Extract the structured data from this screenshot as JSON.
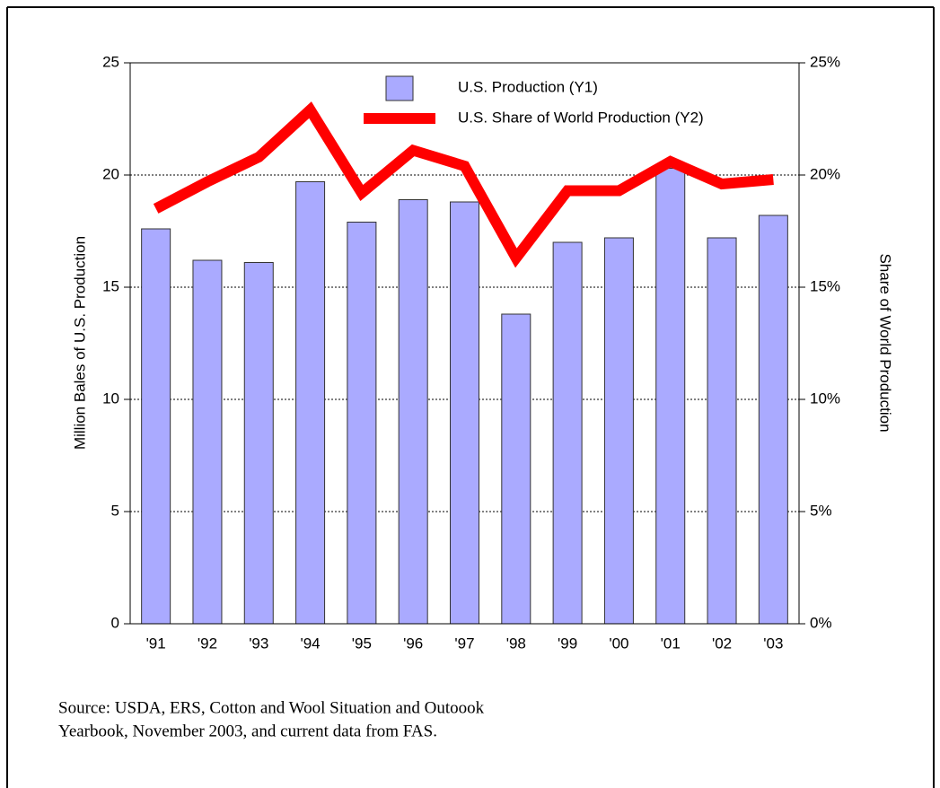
{
  "chart_data": {
    "type": "bar_line",
    "categories": [
      "'91",
      "'92",
      "'93",
      "'94",
      "'95",
      "'96",
      "'97",
      "'98",
      "'99",
      "'00",
      "'01",
      "'02",
      "'03"
    ],
    "series": [
      {
        "name": "U.S. Production (Y1)",
        "color": "#aaaaff",
        "values": [
          17.6,
          16.2,
          16.1,
          19.7,
          17.9,
          18.9,
          18.8,
          13.8,
          17.0,
          17.2,
          20.3,
          17.2,
          18.2
        ]
      },
      {
        "name": "U.S. Share of World Production (Y2)",
        "color": "#ff0000",
        "axis": "y2",
        "values": [
          18.5,
          19.7,
          20.8,
          22.9,
          19.2,
          21.1,
          20.4,
          16.3,
          19.3,
          19.3,
          20.6,
          19.6,
          19.8
        ]
      }
    ],
    "ylabel": "Million Bales of U.S. Production",
    "y2label": "Share of World Production",
    "ylim": [
      0,
      25
    ],
    "yticks": [
      0,
      5,
      10,
      15,
      20,
      25
    ],
    "y2lim": [
      0,
      25
    ],
    "y2ticks": [
      {
        "value": 0,
        "label": "0%"
      },
      {
        "value": 5,
        "label": "5%"
      },
      {
        "value": 10,
        "label": "10%"
      },
      {
        "value": 15,
        "label": "15%"
      },
      {
        "value": 20,
        "label": "20%"
      },
      {
        "value": 25,
        "label": "25%"
      }
    ],
    "grid": true,
    "legend": "top",
    "source_lines": [
      "Source: USDA, ERS, Cotton and Wool Situation and Outoook",
      "Yearbook, November 2003, and current data from FAS."
    ]
  }
}
